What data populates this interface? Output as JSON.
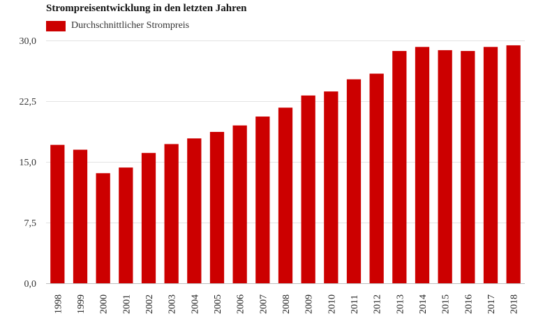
{
  "chart_data": {
    "type": "bar",
    "title": "Strompreisentwicklung in den letzten Jahren",
    "legend": {
      "position": "top-left"
    },
    "color": "#cc0000",
    "series": [
      {
        "name": "Durchschnittlicher Strompreis",
        "values": [
          17.1,
          16.5,
          13.6,
          14.3,
          16.1,
          17.2,
          17.9,
          18.7,
          19.5,
          20.6,
          21.7,
          23.2,
          23.7,
          25.2,
          25.9,
          28.7,
          29.2,
          28.8,
          28.7,
          29.2,
          29.4
        ]
      }
    ],
    "categories": [
      "1998",
      "1999",
      "2000",
      "2001",
      "2002",
      "2003",
      "2004",
      "2005",
      "2006",
      "2007",
      "2008",
      "2009",
      "2010",
      "2011",
      "2012",
      "2013",
      "2014",
      "2015",
      "2016",
      "2017",
      "2018"
    ],
    "yticks": [
      "0,0",
      "7,5",
      "15,0",
      "22,5",
      "30,0"
    ],
    "ytick_values": [
      0,
      7.5,
      15,
      22.5,
      30
    ],
    "ylim": [
      0,
      30
    ],
    "grid": true
  }
}
